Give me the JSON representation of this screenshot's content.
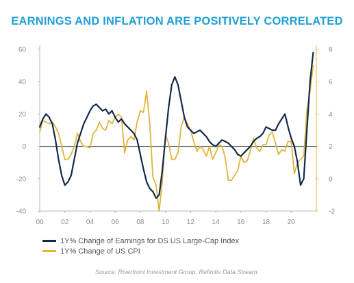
{
  "chart_data": {
    "type": "line",
    "title": "EARNINGS AND INFLATION ARE POSITIVELY CORRELATED",
    "xlabel": "",
    "ylabel": "",
    "xlim": [
      2000,
      2022
    ],
    "ylim": [
      -40,
      60
    ],
    "y2lim": [
      -2,
      8
    ],
    "x_tick_labels": [
      "00",
      "02",
      "04",
      "06",
      "08",
      "10",
      "12",
      "14",
      "16",
      "18",
      "20"
    ],
    "x_tick_values": [
      2000,
      2002,
      2004,
      2006,
      2008,
      2010,
      2012,
      2014,
      2016,
      2018,
      2020
    ],
    "y_ticks": [
      60,
      40,
      20,
      0,
      -20,
      -40
    ],
    "y2_ticks": [
      8,
      6,
      4,
      2,
      0,
      -2
    ],
    "grid": false,
    "legend_position": "bottom-left",
    "source": "Source: Riverfront Investment Group, Refinitiv Data Stream.",
    "series": [
      {
        "name": "1Y% Change of Earnings for DS US Large-Cap Index",
        "color": "#13294b",
        "axis": "left",
        "x": [
          2000.0,
          2000.25,
          2000.5,
          2000.75,
          2001.0,
          2001.25,
          2001.5,
          2001.75,
          2002.0,
          2002.25,
          2002.5,
          2002.75,
          2003.0,
          2003.25,
          2003.5,
          2003.75,
          2004.0,
          2004.25,
          2004.5,
          2004.75,
          2005.0,
          2005.25,
          2005.5,
          2005.75,
          2006.0,
          2006.25,
          2006.5,
          2006.75,
          2007.0,
          2007.25,
          2007.5,
          2007.75,
          2008.0,
          2008.25,
          2008.5,
          2008.75,
          2009.0,
          2009.25,
          2009.5,
          2009.75,
          2010.0,
          2010.25,
          2010.5,
          2010.75,
          2011.0,
          2011.25,
          2011.5,
          2011.75,
          2012.0,
          2012.25,
          2012.5,
          2012.75,
          2013.0,
          2013.25,
          2013.5,
          2013.75,
          2014.0,
          2014.25,
          2014.5,
          2014.75,
          2015.0,
          2015.25,
          2015.5,
          2015.75,
          2016.0,
          2016.25,
          2016.5,
          2016.75,
          2017.0,
          2017.25,
          2017.5,
          2017.75,
          2018.0,
          2018.25,
          2018.5,
          2018.75,
          2019.0,
          2019.25,
          2019.5,
          2019.75,
          2020.0,
          2020.25,
          2020.5,
          2020.75,
          2021.0,
          2021.25,
          2021.5,
          2021.75
        ],
        "values": [
          12,
          17,
          20,
          18,
          14,
          4,
          -8,
          -18,
          -24,
          -22,
          -18,
          -8,
          2,
          8,
          14,
          18,
          22,
          25,
          26,
          24,
          22,
          23,
          20,
          22,
          18,
          15,
          17,
          14,
          12,
          10,
          8,
          4,
          -5,
          -14,
          -22,
          -26,
          -28,
          -32,
          -30,
          -15,
          5,
          24,
          38,
          43,
          38,
          28,
          18,
          12,
          10,
          8,
          9,
          10,
          8,
          6,
          3,
          1,
          0,
          2,
          4,
          3,
          2,
          0,
          -2,
          -5,
          -6,
          -4,
          -2,
          0,
          3,
          5,
          6,
          8,
          12,
          11,
          10,
          10,
          14,
          17,
          20,
          12,
          5,
          0,
          -10,
          -24,
          -20,
          10,
          40,
          58
        ]
      },
      {
        "name": "1Y% Change of US CPI",
        "color": "#e0b43a",
        "axis": "right",
        "x": [
          2000.0,
          2000.25,
          2000.5,
          2000.75,
          2001.0,
          2001.25,
          2001.5,
          2001.75,
          2002.0,
          2002.25,
          2002.5,
          2002.75,
          2003.0,
          2003.25,
          2003.5,
          2003.75,
          2004.0,
          2004.25,
          2004.5,
          2004.75,
          2005.0,
          2005.25,
          2005.5,
          2005.75,
          2006.0,
          2006.25,
          2006.5,
          2006.75,
          2007.0,
          2007.25,
          2007.5,
          2007.75,
          2008.0,
          2008.25,
          2008.5,
          2008.75,
          2009.0,
          2009.25,
          2009.5,
          2009.75,
          2010.0,
          2010.25,
          2010.5,
          2010.75,
          2011.0,
          2011.25,
          2011.5,
          2011.75,
          2012.0,
          2012.25,
          2012.5,
          2012.75,
          2013.0,
          2013.25,
          2013.5,
          2013.75,
          2014.0,
          2014.25,
          2014.5,
          2014.75,
          2015.0,
          2015.25,
          2015.5,
          2015.75,
          2016.0,
          2016.25,
          2016.5,
          2016.75,
          2017.0,
          2017.25,
          2017.5,
          2017.75,
          2018.0,
          2018.25,
          2018.5,
          2018.75,
          2019.0,
          2019.25,
          2019.5,
          2019.75,
          2020.0,
          2020.25,
          2020.5,
          2020.75,
          2021.0,
          2021.25,
          2021.5,
          2021.75
        ],
        "values": [
          2.9,
          3.6,
          3.5,
          3.4,
          3.5,
          3.2,
          2.8,
          2.0,
          1.2,
          1.2,
          1.5,
          2.0,
          2.8,
          2.3,
          2.0,
          2.0,
          1.9,
          2.8,
          3.0,
          3.5,
          3.1,
          3.0,
          3.6,
          3.4,
          3.8,
          4.0,
          3.8,
          1.6,
          2.4,
          2.6,
          2.4,
          3.5,
          4.2,
          4.1,
          5.4,
          3.4,
          0.1,
          -0.4,
          -2.0,
          -0.2,
          2.7,
          2.2,
          1.2,
          1.2,
          1.6,
          3.2,
          3.8,
          3.4,
          3.0,
          2.3,
          1.7,
          2.0,
          1.8,
          1.4,
          2.0,
          1.2,
          1.6,
          2.1,
          2.0,
          1.3,
          -0.1,
          -0.1,
          0.2,
          0.5,
          1.4,
          1.0,
          1.1,
          1.7,
          2.5,
          1.9,
          1.7,
          2.1,
          2.1,
          2.7,
          2.9,
          2.2,
          1.5,
          1.8,
          1.7,
          2.3,
          2.3,
          0.3,
          1.0,
          1.2,
          1.4,
          4.2,
          5.4,
          7.0
        ]
      }
    ]
  }
}
